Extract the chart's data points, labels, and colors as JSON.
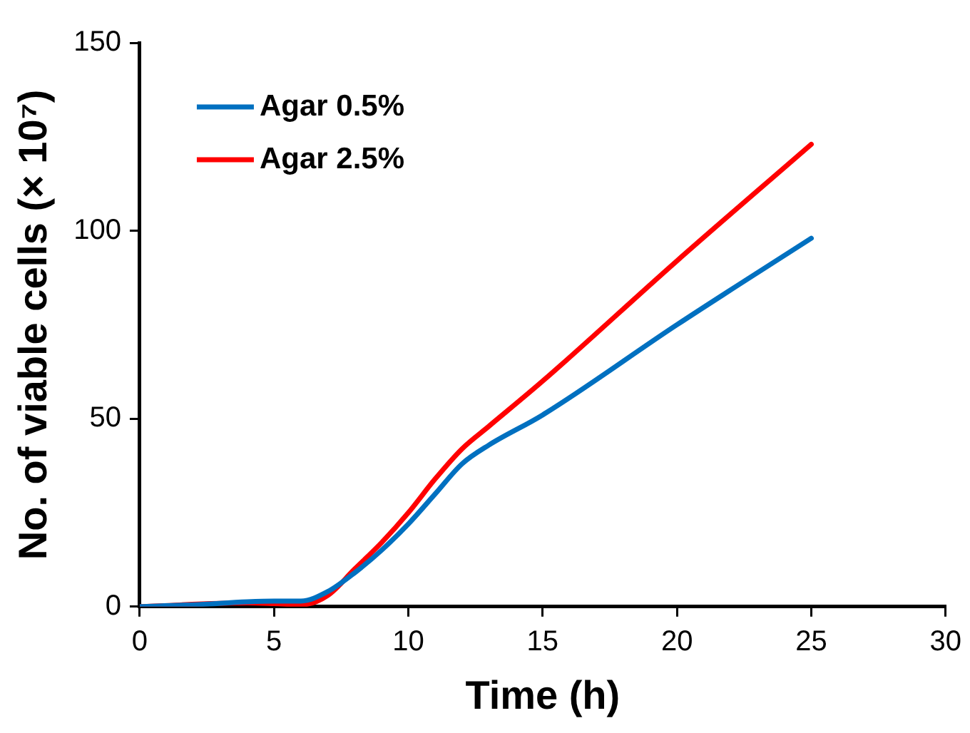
{
  "chart_data": {
    "type": "line",
    "xlabel": "Time (h)",
    "ylabel": "No. of viable cells (× 10⁷)",
    "x": [
      0,
      2,
      4,
      5,
      6,
      7,
      8,
      9,
      10,
      11,
      12,
      13,
      15,
      20,
      25
    ],
    "series": [
      {
        "name": "Agar 0.5%",
        "color": "#0070c0",
        "values": [
          0,
          0.5,
          1.3,
          1.5,
          1.5,
          4,
          9,
          15,
          22,
          30,
          38,
          43,
          51,
          75,
          98
        ]
      },
      {
        "name": "Agar 2.5%",
        "color": "#ff0000",
        "x": [
          0,
          4,
          5,
          6,
          7,
          8,
          9,
          10,
          11,
          12,
          13,
          15,
          20,
          25
        ],
        "values": [
          0,
          1,
          0.8,
          0.5,
          3,
          10,
          17,
          25,
          34,
          42,
          48,
          60,
          92,
          123
        ]
      }
    ],
    "xlim": [
      0,
      30
    ],
    "xticks": [
      0,
      5,
      10,
      15,
      20,
      25,
      30
    ],
    "ylim": [
      0,
      150
    ],
    "yticks": [
      0,
      50,
      100,
      150
    ],
    "grid": false,
    "legend": "top left",
    "marker": "none",
    "line_style": "solid"
  }
}
